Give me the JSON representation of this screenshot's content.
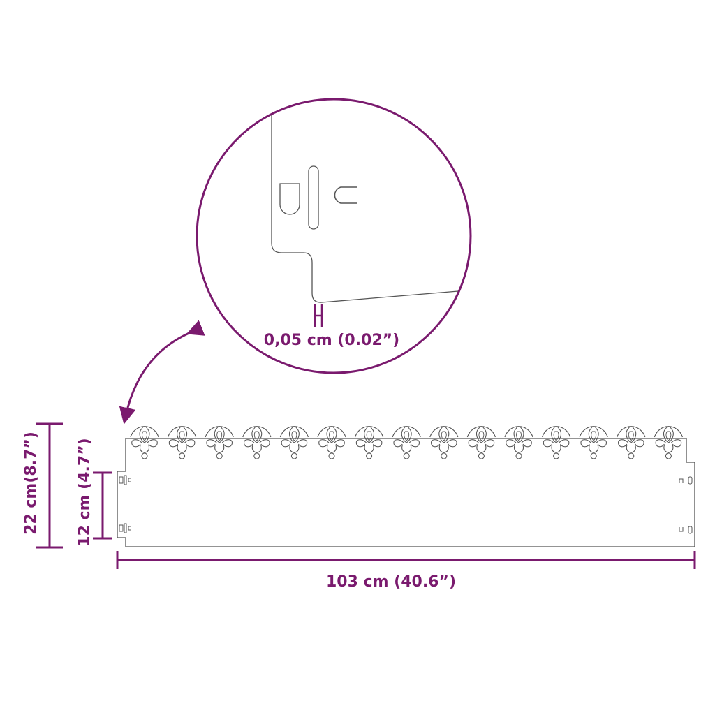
{
  "colors": {
    "accent": "#7a1a6e",
    "outline": "#555555"
  },
  "detail": {
    "thickness_label": "0,05 cm (0.02”)"
  },
  "dimensions": {
    "width_label": "103 cm (40.6”)",
    "total_height_label": "22 cm(8.7”)",
    "panel_height_label": "12 cm (4.7”)"
  }
}
